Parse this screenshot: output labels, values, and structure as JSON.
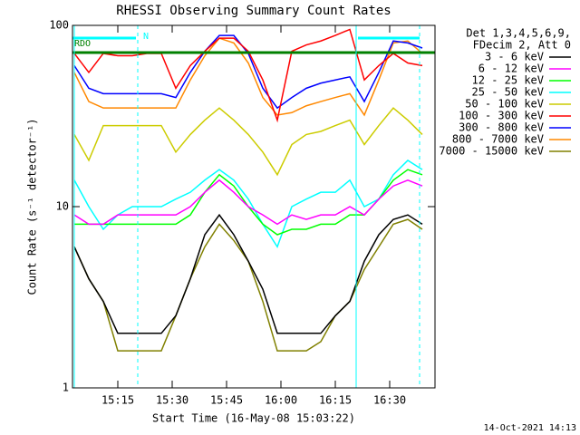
{
  "chart_data": {
    "type": "line",
    "title": "RHESSI Observing Summary Count Rates",
    "xlabel": "Start Time (16-May-08 15:03:22)",
    "ylabel": "Count Rate (s⁻¹ detector⁻¹)",
    "legend_header": [
      "Det 1,3,4,5,6,9,",
      "FDecim 2, Att 0"
    ],
    "flags": [
      "N",
      "RDO"
    ],
    "footer": "14-Oct-2021 14:13",
    "log_y": true,
    "xlim": [
      2.5,
      102.5
    ],
    "xticks": [
      {
        "value": 15,
        "label": "15:15"
      },
      {
        "value": 30,
        "label": "15:30"
      },
      {
        "value": 45,
        "label": "15:45"
      },
      {
        "value": 60,
        "label": "16:00"
      },
      {
        "value": 75,
        "label": "16:15"
      },
      {
        "value": 90,
        "label": "16:30"
      }
    ],
    "ylim": [
      1,
      100
    ],
    "yticks": [
      1,
      10,
      100
    ],
    "x": [
      3,
      7,
      11,
      15,
      19,
      23,
      27,
      31,
      35,
      39,
      43,
      47,
      51,
      55,
      59,
      63,
      67,
      71,
      75,
      79,
      83,
      87,
      91,
      95,
      99
    ],
    "series": [
      {
        "name": "3 - 6 keV",
        "color": "#000000",
        "values": [
          6,
          4,
          3,
          2,
          2,
          2,
          2,
          2.5,
          4,
          7,
          9,
          7,
          5,
          3.5,
          2,
          2,
          2,
          2,
          2.5,
          3,
          5,
          7,
          8.5,
          9,
          8
        ]
      },
      {
        "name": "6 - 12 keV",
        "color": "#ff00ff",
        "values": [
          9,
          8,
          8,
          9,
          9,
          9,
          9,
          9,
          10,
          12,
          14,
          12,
          10,
          9,
          8,
          9,
          8.5,
          9,
          9,
          10,
          9,
          11,
          13,
          14,
          13
        ]
      },
      {
        "name": "12 - 25 keV",
        "color": "#00ff00",
        "values": [
          8,
          8,
          8,
          8,
          8,
          8,
          8,
          8,
          9,
          12,
          15,
          13,
          10,
          8,
          7,
          7.5,
          7.5,
          8,
          8,
          9,
          9,
          11,
          14,
          16,
          15
        ]
      },
      {
        "name": "25 - 50 keV",
        "color": "#00ffff",
        "values": [
          14,
          10,
          7.5,
          9,
          10,
          10,
          10,
          11,
          12,
          14,
          16,
          14,
          11,
          8,
          6,
          10,
          11,
          12,
          12,
          14,
          10,
          11,
          15,
          18,
          16
        ]
      },
      {
        "name": "50 - 100 keV",
        "color": "#cccc00",
        "values": [
          25,
          18,
          28,
          28,
          28,
          28,
          28,
          20,
          25,
          30,
          35,
          30,
          25,
          20,
          15,
          22,
          25,
          26,
          28,
          30,
          22,
          28,
          35,
          30,
          25
        ]
      },
      {
        "name": "100 - 300 keV",
        "color": "#ff0000",
        "values": [
          70,
          55,
          70,
          68,
          68,
          70,
          70,
          45,
          60,
          72,
          85,
          85,
          72,
          50,
          30,
          72,
          78,
          82,
          88,
          95,
          50,
          60,
          70,
          62,
          60
        ]
      },
      {
        "name": "300 - 800 keV",
        "color": "#0000ff",
        "values": [
          60,
          45,
          42,
          42,
          42,
          42,
          42,
          40,
          55,
          72,
          88,
          88,
          70,
          45,
          35,
          40,
          45,
          48,
          50,
          52,
          38,
          55,
          82,
          80,
          75
        ]
      },
      {
        "name": "800 - 7000 keV",
        "color": "#ff8800",
        "values": [
          55,
          38,
          35,
          35,
          35,
          35,
          35,
          35,
          50,
          68,
          85,
          80,
          62,
          40,
          32,
          33,
          36,
          38,
          40,
          42,
          32,
          50,
          80,
          82,
          70
        ]
      },
      {
        "name": "7000 - 15000 keV",
        "color": "#808000",
        "values": [
          6,
          4,
          3,
          1.6,
          1.6,
          1.6,
          1.6,
          2.5,
          4,
          6,
          8,
          6.5,
          5,
          3,
          1.6,
          1.6,
          1.6,
          1.8,
          2.5,
          3,
          4.5,
          6,
          8,
          8.5,
          7.5
        ]
      }
    ]
  }
}
